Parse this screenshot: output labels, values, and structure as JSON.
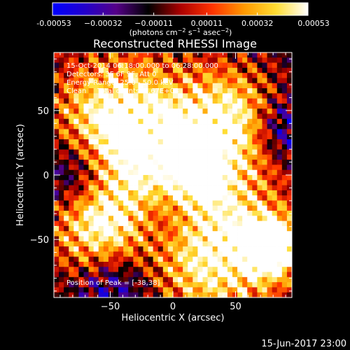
{
  "chart_data": {
    "type": "heatmap",
    "title": "Reconstructed RHESSI Image",
    "xlabel": "Heliocentric X (arcsec)",
    "ylabel": "Heliocentric Y (arcsec)",
    "xlim": [
      -95,
      95
    ],
    "ylim": [
      -95,
      95
    ],
    "x_ticks": [
      -50,
      0,
      50
    ],
    "y_ticks": [
      -50,
      0,
      50
    ],
    "x_tick_labels": [
      "−50",
      "0",
      "50"
    ],
    "y_tick_labels": [
      "−50",
      "0",
      "50"
    ],
    "colorbar": {
      "min": -0.00053,
      "max": 0.00053,
      "tick_values": [
        -0.00053,
        -0.00032,
        -0.00011,
        0.00011,
        0.00032,
        0.00053
      ],
      "tick_labels": [
        "-0.00053",
        "−0.00032",
        "−0.00011",
        "0.00011",
        "0.00032",
        "0.00053"
      ],
      "unit_label_main": "(photons cm",
      "unit_label_exp1": "−2",
      "unit_label_mid1": " s",
      "unit_label_exp2": "−1",
      "unit_label_mid2": " asec",
      "unit_label_exp3": "−2",
      "unit_label_end": ")",
      "colors": [
        "#0000ff",
        "#2200cc",
        "#550088",
        "#000000",
        "#aa0000",
        "#ff3300",
        "#ff9900",
        "#ffdd33",
        "#ffffff"
      ]
    },
    "info_lines": [
      "15-Oct-2014 06:18:00.000 to 06:28:00.000",
      "Detectors: 3F 6F 9F, Att 0",
      "Energy Range: 25.0 - 50.0 keV",
      "Clean     Total counts: 5.67E+03"
    ],
    "peak_label": "Position of Peak = [-38,38]",
    "peak_position": [
      -38,
      38
    ],
    "hot_regions": [
      {
        "center": [
          -40,
          36
        ],
        "radius": 38,
        "intensity": 0.95
      },
      {
        "center": [
          45,
          40
        ],
        "radius": 30,
        "intensity": 0.75
      },
      {
        "center": [
          -55,
          -40
        ],
        "radius": 30,
        "intensity": 0.8
      },
      {
        "center": [
          35,
          -55
        ],
        "radius": 40,
        "intensity": 0.85
      },
      {
        "center": [
          80,
          -55
        ],
        "radius": 15,
        "intensity": 0.95
      },
      {
        "center": [
          15,
          5
        ],
        "radius": 18,
        "intensity": 0.6
      }
    ],
    "cool_regions": [
      {
        "center": [
          -75,
          0
        ],
        "radius": 22,
        "intensity": 0.75
      },
      {
        "center": [
          -45,
          -80
        ],
        "radius": 22,
        "intensity": 0.6
      },
      {
        "center": [
          -10,
          -35
        ],
        "radius": 22,
        "intensity": 0.55
      },
      {
        "center": [
          85,
          35
        ],
        "radius": 18,
        "intensity": 0.55
      }
    ]
  },
  "timestamp": "15-Jun-2017 23:00"
}
